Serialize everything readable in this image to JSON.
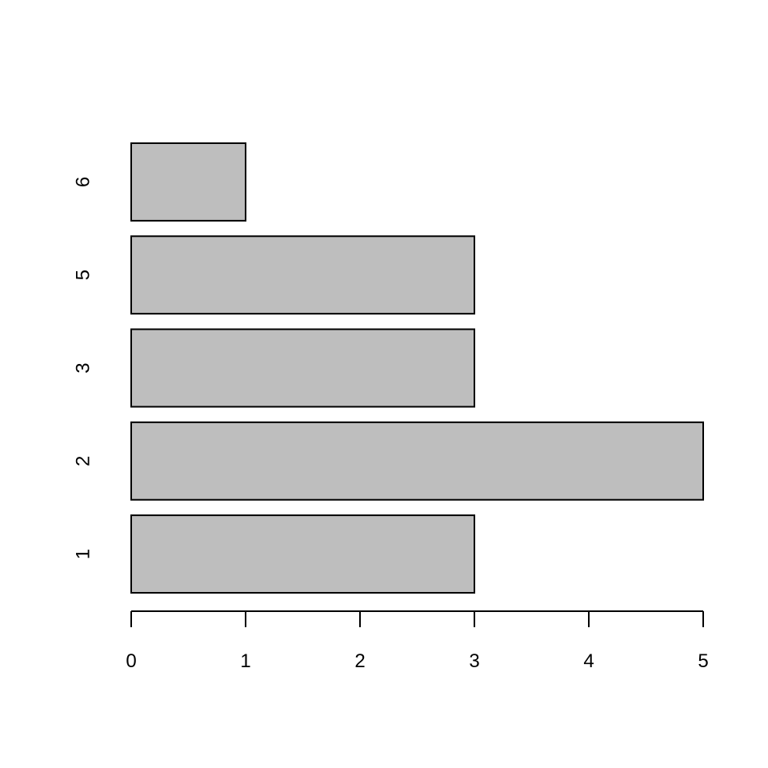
{
  "chart_data": {
    "type": "bar",
    "orientation": "horizontal",
    "categories": [
      "1",
      "2",
      "3",
      "5",
      "6"
    ],
    "values": [
      3,
      5,
      3,
      3,
      1
    ],
    "title": "",
    "xlabel": "",
    "ylabel": "",
    "xlim": [
      0,
      5
    ],
    "x_ticks": [
      0,
      1,
      2,
      3,
      4,
      5
    ],
    "grid": false,
    "legend": "none",
    "colors": {
      "bar_fill": "#bebebe",
      "bar_stroke": "#000000",
      "axis": "#000000",
      "background": "#ffffff"
    }
  }
}
